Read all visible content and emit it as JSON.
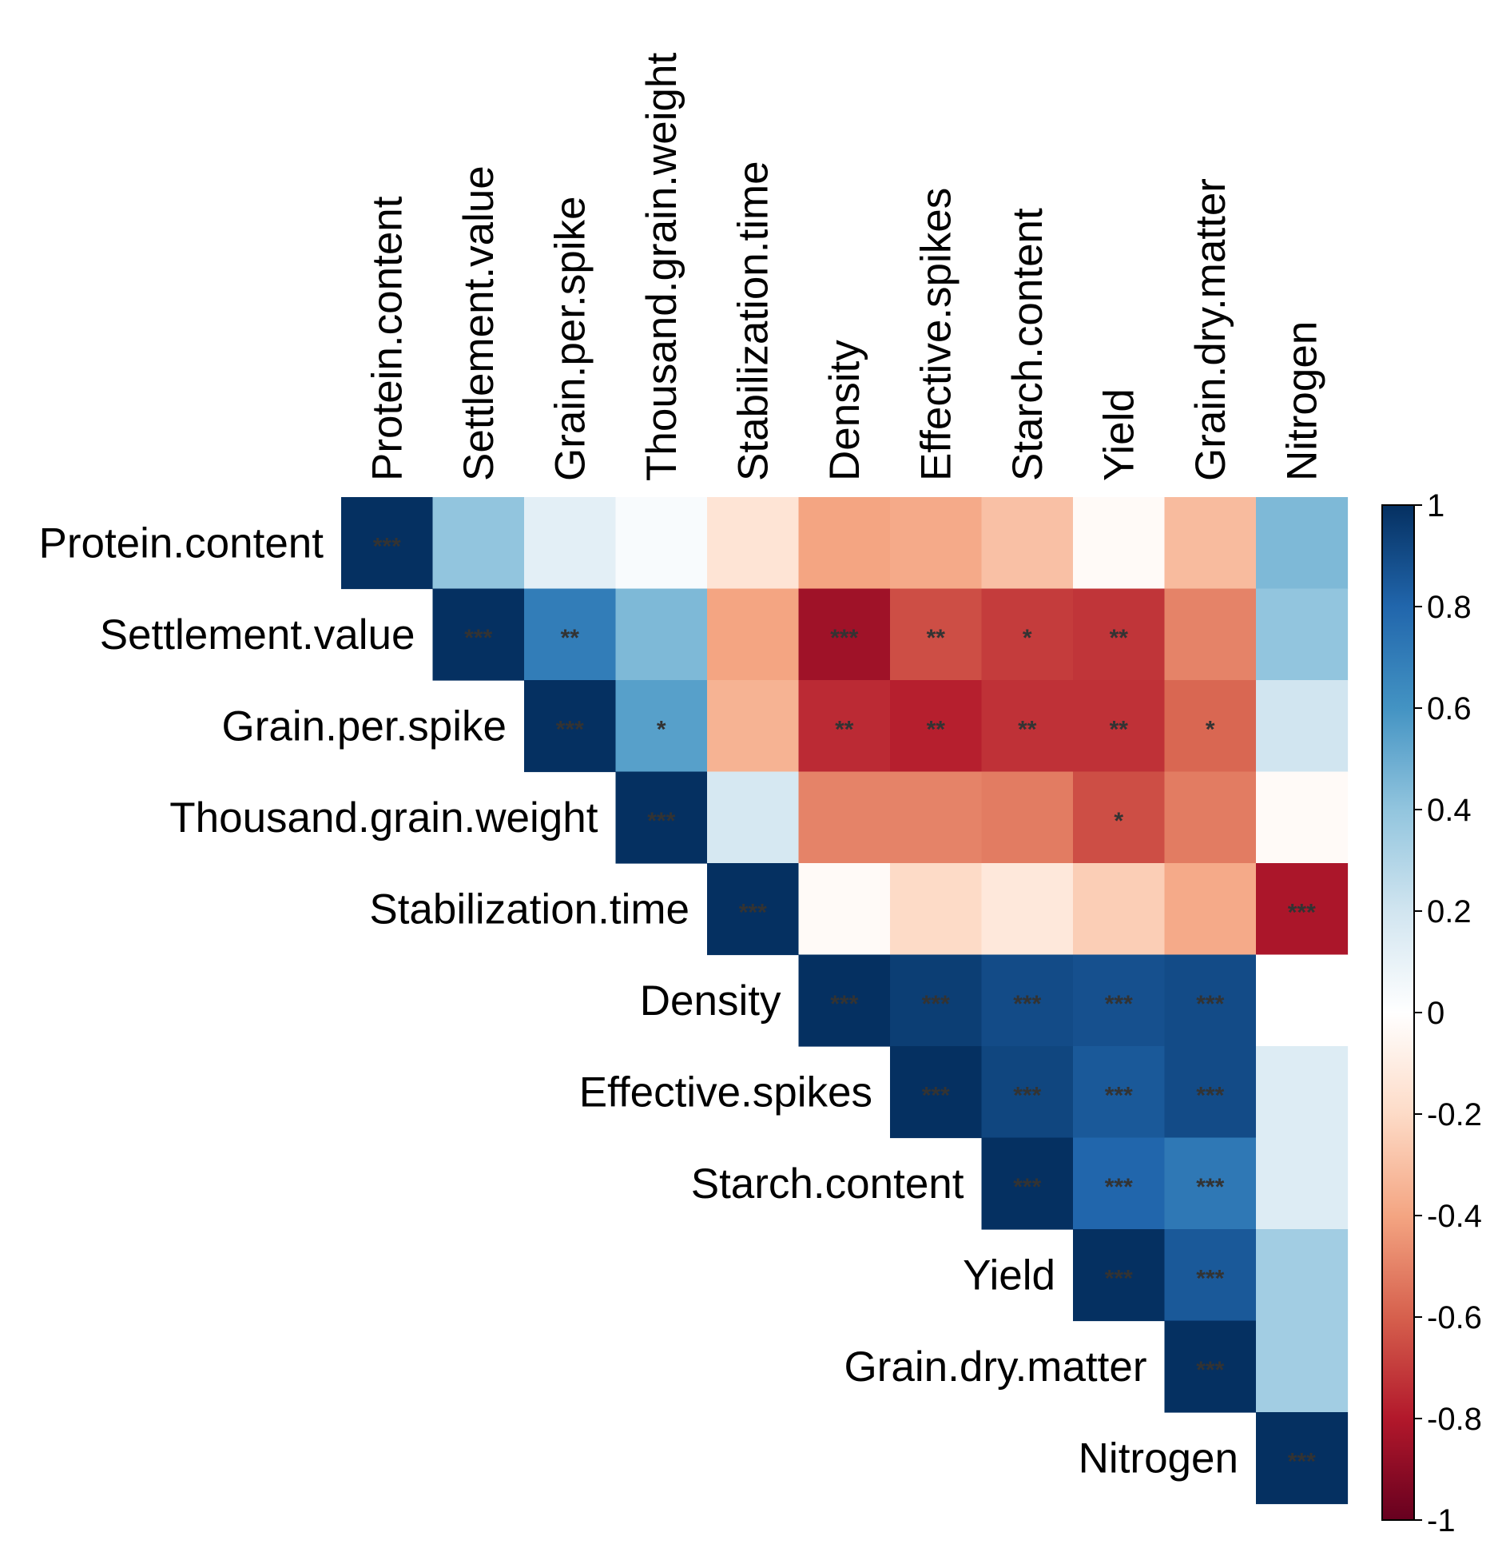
{
  "chart_data": {
    "type": "heatmap",
    "subtype": "correlation-upper-triangle",
    "variables": [
      "Protein.content",
      "Settlement.value",
      "Grain.per.spike",
      "Thousand.grain.weight",
      "Stabilization.time",
      "Density",
      "Effective.spikes",
      "Starch.content",
      "Yield",
      "Grain.dry.matter",
      "Nitrogen"
    ],
    "matrix": [
      [
        1.0,
        0.4,
        0.12,
        0.03,
        -0.15,
        -0.4,
        -0.38,
        -0.3,
        -0.03,
        -0.32,
        0.45
      ],
      [
        null,
        1.0,
        0.7,
        0.45,
        -0.4,
        -0.85,
        -0.65,
        -0.7,
        -0.72,
        -0.5,
        0.4
      ],
      [
        null,
        null,
        1.0,
        0.55,
        -0.35,
        -0.75,
        -0.78,
        -0.73,
        -0.73,
        -0.58,
        0.2
      ],
      [
        null,
        null,
        null,
        1.0,
        0.18,
        -0.5,
        -0.5,
        -0.52,
        -0.65,
        -0.52,
        -0.03
      ],
      [
        null,
        null,
        null,
        null,
        1.0,
        -0.03,
        -0.2,
        -0.13,
        -0.25,
        -0.38,
        -0.82
      ],
      [
        null,
        null,
        null,
        null,
        null,
        1.0,
        0.95,
        0.9,
        0.88,
        0.9,
        0.0
      ],
      [
        null,
        null,
        null,
        null,
        null,
        null,
        1.0,
        0.92,
        0.85,
        0.9,
        0.15
      ],
      [
        null,
        null,
        null,
        null,
        null,
        null,
        null,
        1.0,
        0.8,
        0.72,
        0.15
      ],
      [
        null,
        null,
        null,
        null,
        null,
        null,
        null,
        null,
        1.0,
        0.85,
        0.35
      ],
      [
        null,
        null,
        null,
        null,
        null,
        null,
        null,
        null,
        null,
        1.0,
        0.35
      ],
      [
        null,
        null,
        null,
        null,
        null,
        null,
        null,
        null,
        null,
        null,
        1.0
      ]
    ],
    "significance": [
      [
        "***",
        "",
        "",
        "",
        "",
        "",
        "",
        "",
        "",
        "",
        ""
      ],
      [
        null,
        "***",
        "**",
        "",
        "",
        "***",
        "**",
        "*",
        "**",
        "",
        ""
      ],
      [
        null,
        null,
        "***",
        "*",
        "",
        "**",
        "**",
        "**",
        "**",
        "*",
        ""
      ],
      [
        null,
        null,
        null,
        "***",
        "",
        "",
        "",
        "",
        "*",
        "",
        ""
      ],
      [
        null,
        null,
        null,
        null,
        "***",
        "",
        "",
        "",
        "",
        "",
        "***"
      ],
      [
        null,
        null,
        null,
        null,
        null,
        "***",
        "***",
        "***",
        "***",
        "***",
        ""
      ],
      [
        null,
        null,
        null,
        null,
        null,
        null,
        "***",
        "***",
        "***",
        "***",
        ""
      ],
      [
        null,
        null,
        null,
        null,
        null,
        null,
        null,
        "***",
        "***",
        "***",
        ""
      ],
      [
        null,
        null,
        null,
        null,
        null,
        null,
        null,
        null,
        "***",
        "***",
        ""
      ],
      [
        null,
        null,
        null,
        null,
        null,
        null,
        null,
        null,
        null,
        "***",
        ""
      ],
      [
        null,
        null,
        null,
        null,
        null,
        null,
        null,
        null,
        null,
        null,
        "***"
      ]
    ],
    "colorbar": {
      "range": [
        -1,
        1
      ],
      "ticks": [
        1,
        0.8,
        0.6,
        0.4,
        0.2,
        0,
        -0.2,
        -0.4,
        -0.6,
        -0.8,
        -1
      ],
      "tick_labels": [
        "1",
        "0.8",
        "0.6",
        "0.4",
        "0.2",
        "0",
        "-0.2",
        "-0.4",
        "-0.6",
        "-0.8",
        "-1"
      ],
      "colors": {
        "neg1": "#67001f",
        "neg08": "#b2182b",
        "neg06": "#d6604d",
        "neg04": "#f4a582",
        "neg02": "#fddbc7",
        "zero": "#ffffff",
        "pos02": "#d1e5f0",
        "pos04": "#92c5de",
        "pos06": "#4393c3",
        "pos08": "#2166ac",
        "pos1": "#053061"
      }
    }
  }
}
